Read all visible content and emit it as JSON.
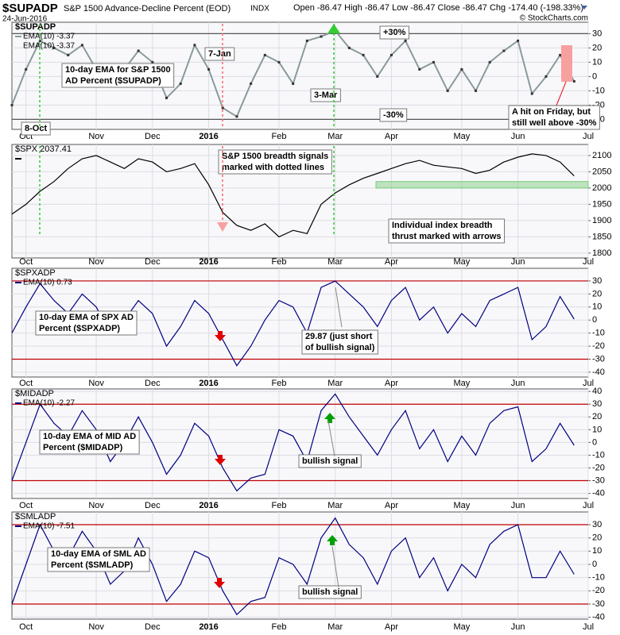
{
  "header": {
    "symbol": "$SUPADP",
    "name": "S&P 1500 Advance-Decline Percent (EOD)",
    "exchange": "INDX",
    "date": "24-Jun-2016",
    "quote": "Open -86.47  High -86.47  Low -86.47  Close -86.47  Chg -174.40 (-198.33%)",
    "credit": "© StockCharts.com"
  },
  "chart_data": [
    {
      "type": "line",
      "label": "$SUPADP",
      "legend_extra": "EMA(10) -3.37",
      "categories": [
        null,
        "Oct",
        null,
        null,
        null,
        null,
        "Nov",
        null,
        null,
        null,
        "Dec",
        null,
        null,
        null,
        "2016",
        null,
        null,
        null,
        null,
        "Feb",
        null,
        null,
        null,
        "Mar",
        null,
        null,
        null,
        "Apr",
        null,
        null,
        null,
        null,
        "May",
        null,
        null,
        null,
        "Jun",
        null,
        null,
        null,
        null,
        "Jul"
      ],
      "series": [
        {
          "name": "EMA(10) -3.37",
          "color": "#8a9a9a",
          "values": [
            -20,
            5,
            25,
            20,
            15,
            22,
            5,
            -5,
            5,
            18,
            10,
            -15,
            -5,
            22,
            5,
            -22,
            -28,
            -5,
            15,
            10,
            -5,
            25,
            28,
            32,
            20,
            15,
            0,
            15,
            25,
            5,
            10,
            -10,
            5,
            -10,
            10,
            18,
            25,
            -12,
            0,
            15,
            -3.37,
            null
          ]
        }
      ],
      "ylim": [
        -37,
        38
      ],
      "yticks": [
        -30,
        -20,
        -10,
        0,
        10,
        20,
        30
      ],
      "hlines": [
        30,
        -30
      ],
      "hline_color": "#555555",
      "notes": [
        {
          "lines": [
            "10-day EMA for S&P 1500",
            "AD Percent ($SUPADP)"
          ],
          "color": "#000000"
        },
        {
          "lines": [
            "+30%"
          ],
          "color": "#000000"
        },
        {
          "lines": [
            "-30%"
          ],
          "color": "#000000"
        },
        {
          "lines": [
            "7-Jan"
          ],
          "color": "#e00000"
        },
        {
          "lines": [
            "8-Oct"
          ],
          "color": "#00a000"
        },
        {
          "lines": [
            "3-Mar"
          ],
          "color": "#00a000"
        },
        {
          "lines": [
            "A hit on Friday, but",
            "still well above -30%"
          ],
          "color": "#e00000"
        }
      ]
    },
    {
      "type": "line",
      "label": "$SPX 2037.41",
      "categories": [
        null,
        "Oct",
        null,
        null,
        null,
        null,
        "Nov",
        null,
        null,
        null,
        "Dec",
        null,
        null,
        null,
        "2016",
        null,
        null,
        null,
        null,
        "Feb",
        null,
        null,
        null,
        "Mar",
        null,
        null,
        null,
        "Apr",
        null,
        null,
        null,
        null,
        "May",
        null,
        null,
        null,
        "Jun",
        null,
        null,
        null,
        null,
        "Jul"
      ],
      "series": [
        {
          "name": "$SPX",
          "color": "#000000",
          "values": [
            1920,
            1950,
            1990,
            2020,
            2060,
            2090,
            2100,
            2080,
            2060,
            2090,
            2080,
            2050,
            2060,
            2075,
            2010,
            1925,
            1885,
            1870,
            1890,
            1850,
            1870,
            1860,
            1950,
            1985,
            2010,
            2030,
            2045,
            2060,
            2075,
            2085,
            2070,
            2065,
            2060,
            2045,
            2055,
            2080,
            2095,
            2105,
            2100,
            2080,
            2037.41,
            null
          ]
        }
      ],
      "ylim": [
        1785,
        2134
      ],
      "yticks": [
        1800,
        1850,
        1900,
        1950,
        2000,
        2050,
        2100
      ],
      "band": [
        2000,
        2020
      ],
      "notes": [
        {
          "lines": [
            "S&P 1500 breadth signals",
            "marked with dotted lines"
          ],
          "color": "#000000"
        },
        {
          "lines": [
            "Individual index breadth",
            "thrust marked with arrows"
          ],
          "color": "#000000"
        }
      ]
    },
    {
      "type": "line",
      "label": "$SPXADP",
      "categories": [
        null,
        "Oct",
        null,
        null,
        null,
        null,
        "Nov",
        null,
        null,
        null,
        "Dec",
        null,
        null,
        null,
        "2016",
        null,
        null,
        null,
        null,
        "Feb",
        null,
        null,
        null,
        "Mar",
        null,
        null,
        null,
        "Apr",
        null,
        null,
        null,
        null,
        "May",
        null,
        null,
        null,
        "Jun",
        null,
        null,
        null,
        null,
        "Jul"
      ],
      "series": [
        {
          "name": "EMA(10) 0.73",
          "color": "#000080",
          "values": [
            -10,
            10,
            28,
            15,
            5,
            20,
            10,
            -10,
            0,
            15,
            5,
            -20,
            -5,
            15,
            5,
            -15,
            -35,
            -20,
            0,
            15,
            10,
            -10,
            25,
            29.87,
            20,
            10,
            -5,
            15,
            25,
            0,
            10,
            -10,
            5,
            -5,
            15,
            20,
            25,
            -15,
            -5,
            18,
            0.73,
            null
          ]
        }
      ],
      "ylim": [
        -43.7,
        39.7
      ],
      "yticks": [
        -40,
        -30,
        -20,
        -10,
        0,
        10,
        20,
        30
      ],
      "hlines": [
        30,
        -30
      ],
      "hline_color": "#c00000",
      "notes": [
        {
          "lines": [
            "10-day EMA of SPX  AD",
            "Percent ($SPXADP)"
          ],
          "color": "#000080"
        },
        {
          "lines": [
            "29.87 (just short",
            "of bullish signal)"
          ],
          "color": "#000080"
        }
      ]
    },
    {
      "type": "line",
      "label": "$MIDADP",
      "categories": [
        null,
        "Oct",
        null,
        null,
        null,
        null,
        "Nov",
        null,
        null,
        null,
        "Dec",
        null,
        null,
        null,
        "2016",
        null,
        null,
        null,
        null,
        "Feb",
        null,
        null,
        null,
        "Mar",
        null,
        null,
        null,
        "Apr",
        null,
        null,
        null,
        null,
        "May",
        null,
        null,
        null,
        "Jun",
        null,
        null,
        null,
        null,
        "Jul"
      ],
      "series": [
        {
          "name": "EMA(10) -2.27",
          "color": "#000080",
          "values": [
            -30,
            0,
            30,
            15,
            5,
            25,
            10,
            -15,
            0,
            20,
            0,
            -25,
            -10,
            15,
            5,
            -20,
            -38,
            -28,
            -25,
            10,
            5,
            -15,
            25,
            38,
            20,
            5,
            -10,
            10,
            25,
            -5,
            10,
            -15,
            5,
            -10,
            15,
            25,
            28,
            -15,
            -5,
            15,
            -2.27,
            null
          ]
        }
      ],
      "ylim": [
        -44,
        42
      ],
      "yticks": [
        -40,
        -30,
        -20,
        -10,
        0,
        10,
        20,
        30,
        40
      ],
      "hlines": [
        30,
        -30
      ],
      "hline_color": "#c00000",
      "notes": [
        {
          "lines": [
            "10-day EMA of MID  AD",
            "Percent ($MIDADP)"
          ],
          "color": "#000080"
        },
        {
          "lines": [
            "bullish signal"
          ],
          "color": "#008000"
        }
      ]
    },
    {
      "type": "line",
      "label": "$SMLADP",
      "categories": [
        null,
        "Oct",
        null,
        null,
        null,
        null,
        "Nov",
        null,
        null,
        null,
        "Dec",
        null,
        null,
        null,
        "2016",
        null,
        null,
        null,
        null,
        "Feb",
        null,
        null,
        null,
        "Mar",
        null,
        null,
        null,
        "Apr",
        null,
        null,
        null,
        null,
        "May",
        null,
        null,
        null,
        "Jun",
        null,
        null,
        null,
        null,
        "Jul"
      ],
      "series": [
        {
          "name": "EMA(10) -7.51",
          "color": "#000080",
          "values": [
            -30,
            0,
            30,
            10,
            5,
            25,
            10,
            -15,
            -5,
            20,
            0,
            -28,
            -15,
            10,
            5,
            -20,
            -38,
            -28,
            -25,
            5,
            0,
            -15,
            20,
            35,
            15,
            5,
            -15,
            10,
            20,
            -10,
            5,
            -20,
            0,
            -10,
            15,
            25,
            30,
            -10,
            -10,
            10,
            -7.51,
            null
          ]
        }
      ],
      "ylim": [
        -41.4,
        39.6
      ],
      "yticks": [
        -40,
        -30,
        -20,
        -10,
        0,
        10,
        20,
        30
      ],
      "hlines": [
        30,
        -30
      ],
      "hline_color": "#c00000",
      "notes": [
        {
          "lines": [
            "10-day EMA of SML  AD",
            "Percent ($SMLADP)"
          ],
          "color": "#000080"
        },
        {
          "lines": [
            "bullish signal"
          ],
          "color": "#008000"
        }
      ]
    }
  ]
}
